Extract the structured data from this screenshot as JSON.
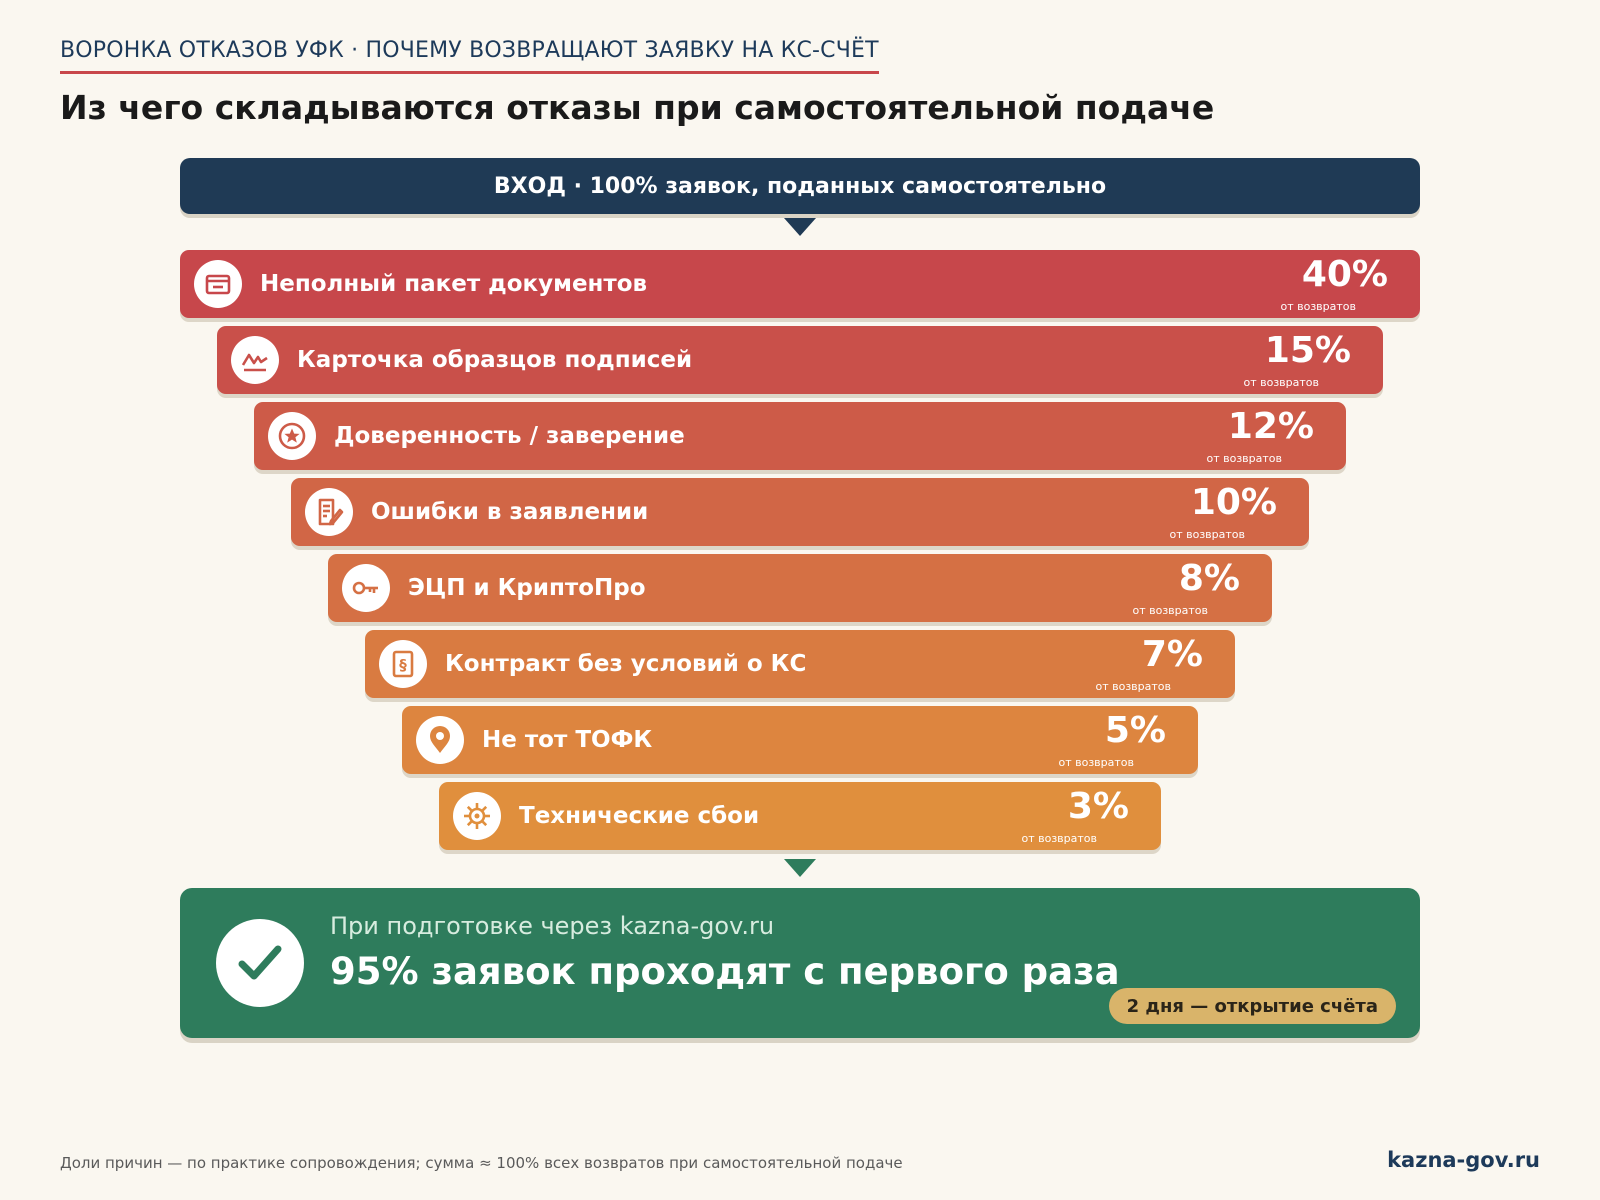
{
  "header": {
    "kicker": "ВОРОНКА ОТКАЗОВ УФК · ПОЧЕМУ ВОЗВРАЩАЮТ ЗАЯВКУ НА КС-СЧЁТ",
    "title": "Из чего складываются отказы при самостоятельной подаче"
  },
  "funnel": {
    "entry_label": "ВХОД · 100% заявок, поданных самостоятельно",
    "sub_label": "от возвратов",
    "stages": [
      {
        "label": "Неполный пакет документов",
        "percent": "40%",
        "color": "#c7474b",
        "icon": "folder-icon"
      },
      {
        "label": "Карточка образцов подписей",
        "percent": "15%",
        "color": "#c9504a",
        "icon": "signature-icon"
      },
      {
        "label": "Доверенность / заверение",
        "percent": "12%",
        "color": "#cd5b48",
        "icon": "seal-icon"
      },
      {
        "label": "Ошибки в заявлении",
        "percent": "10%",
        "color": "#d16646",
        "icon": "document-edit-icon"
      },
      {
        "label": "ЭЦП и КриптоПро",
        "percent": "8%",
        "color": "#d57044",
        "icon": "key-icon"
      },
      {
        "label": "Контракт без условий о КС",
        "percent": "7%",
        "color": "#d97b41",
        "icon": "contract-icon"
      },
      {
        "label": "Не тот ТОФК",
        "percent": "5%",
        "color": "#dd853f",
        "icon": "location-pin-icon"
      },
      {
        "label": "Технические сбои",
        "percent": "3%",
        "color": "#e08f3d",
        "icon": "gear-icon"
      }
    ]
  },
  "result": {
    "lead": "При подготовке через kazna-gov.ru",
    "headline": "95% заявок проходят с первого раза",
    "pill": "2 дня — открытие счёта",
    "icon": "checkmark-icon"
  },
  "footer": {
    "note": "Доли причин — по практике сопровождения; сумма ≈ 100% всех возвратов при самостоятельной подаче",
    "brand": "kazna-gov.ru"
  }
}
